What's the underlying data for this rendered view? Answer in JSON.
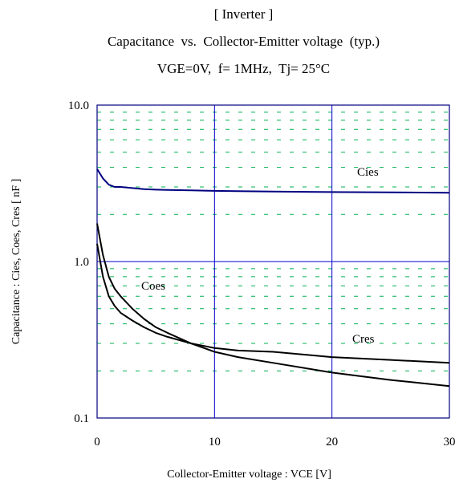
{
  "chart_data": {
    "type": "line",
    "title": "[ Inverter ]",
    "subtitle": "Capacitance  vs.  Collector-Emitter voltage  (typ.)",
    "conditions": "VGE=0V,  f= 1MHz,  Tj= 25°C",
    "xlabel": "Collector-Emitter voltage : VCE [V]",
    "ylabel": "Capacitance :  Cies, Coes, Cres [ nF ]",
    "xlim": [
      0,
      30
    ],
    "ylim": [
      0.1,
      10.0
    ],
    "yscale": "log",
    "x_ticks": [
      "0",
      "10",
      "20",
      "30"
    ],
    "y_ticks": [
      "0.1",
      "1.0",
      "10.0"
    ],
    "grid": true,
    "colors": {
      "cies": "#000080",
      "coes": "#000000",
      "cres": "#000000",
      "major_grid": "#0000cc",
      "minor_grid": "#00b050"
    },
    "series": [
      {
        "name": "Cies",
        "x": [
          0,
          0.5,
          1,
          1.5,
          2,
          3,
          4,
          5,
          6,
          8,
          10,
          12,
          15,
          20,
          25,
          30
        ],
        "y": [
          3.9,
          3.4,
          3.1,
          3.0,
          3.0,
          2.95,
          2.9,
          2.88,
          2.87,
          2.85,
          2.83,
          2.82,
          2.8,
          2.78,
          2.77,
          2.75
        ]
      },
      {
        "name": "Coes",
        "x": [
          0,
          0.5,
          1,
          1.5,
          2,
          3,
          4,
          5,
          6,
          8,
          10,
          12,
          15,
          20,
          25,
          30
        ],
        "y": [
          1.75,
          1.1,
          0.8,
          0.67,
          0.6,
          0.5,
          0.43,
          0.38,
          0.35,
          0.3,
          0.265,
          0.245,
          0.225,
          0.195,
          0.175,
          0.16
        ]
      },
      {
        "name": "Cres",
        "x": [
          0,
          0.5,
          1,
          1.5,
          2,
          3,
          4,
          5,
          6,
          8,
          10,
          12,
          15,
          20,
          25,
          30
        ],
        "y": [
          1.3,
          0.8,
          0.6,
          0.52,
          0.47,
          0.42,
          0.38,
          0.35,
          0.33,
          0.3,
          0.28,
          0.27,
          0.265,
          0.245,
          0.235,
          0.225
        ]
      }
    ]
  }
}
